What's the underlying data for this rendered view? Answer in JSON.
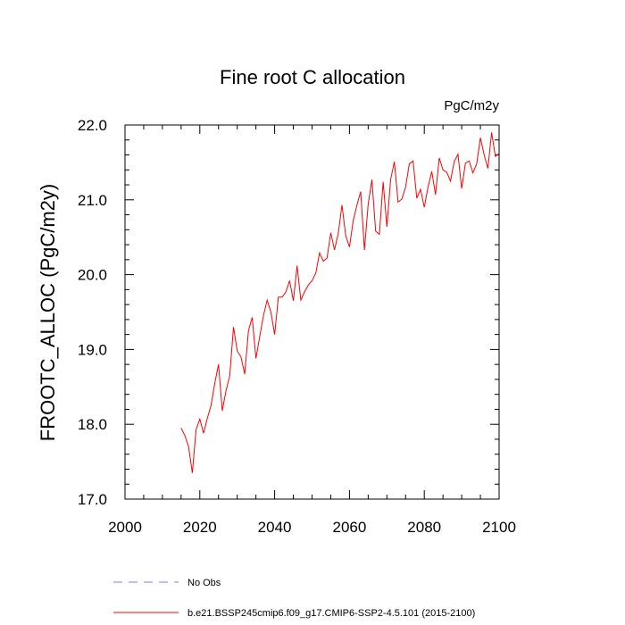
{
  "chart_data": {
    "type": "line",
    "title": "Fine root C allocation",
    "units_label": "PgC/m2y",
    "xlabel": "",
    "ylabel": "FROOTC_ALLOC  (PgC/m2y)",
    "xlim": [
      2000,
      2100
    ],
    "ylim": [
      17.0,
      22.0
    ],
    "x_ticks": [
      2000,
      2020,
      2040,
      2060,
      2080,
      2100
    ],
    "x_tick_labels": [
      "2000",
      "2020",
      "2040",
      "2060",
      "2080",
      "2100"
    ],
    "y_ticks": [
      17.0,
      18.0,
      19.0,
      20.0,
      21.0,
      22.0
    ],
    "y_tick_labels": [
      "17.0",
      "18.0",
      "19.0",
      "20.0",
      "21.0",
      "22.0"
    ],
    "grid": false,
    "legend_position": "bottom",
    "series": [
      {
        "name": "No Obs",
        "color": "#7a7aff",
        "dash": "dashed",
        "x": [],
        "y": []
      },
      {
        "name": "b.e21.BSSP245cmip6.f09_g17.CMIP6-SSP2-4.5.101 (2015-2100)",
        "color": "#ff0000",
        "dash": "solid",
        "x": [
          2015,
          2016,
          2017,
          2018,
          2019,
          2020,
          2021,
          2022,
          2023,
          2024,
          2025,
          2026,
          2027,
          2028,
          2029,
          2030,
          2031,
          2032,
          2033,
          2034,
          2035,
          2036,
          2037,
          2038,
          2039,
          2040,
          2041,
          2042,
          2043,
          2044,
          2045,
          2046,
          2047,
          2048,
          2049,
          2050,
          2051,
          2052,
          2053,
          2054,
          2055,
          2056,
          2057,
          2058,
          2059,
          2060,
          2061,
          2062,
          2063,
          2064,
          2065,
          2066,
          2067,
          2068,
          2069,
          2070,
          2071,
          2072,
          2073,
          2074,
          2075,
          2076,
          2077,
          2078,
          2079,
          2080,
          2081,
          2082,
          2083,
          2084,
          2085,
          2086,
          2087,
          2088,
          2089,
          2090,
          2091,
          2092,
          2093,
          2094,
          2095,
          2096,
          2097,
          2098,
          2099,
          2100
        ],
        "y": [
          17.95,
          17.85,
          17.7,
          17.35,
          17.93,
          18.07,
          17.88,
          18.08,
          18.25,
          18.55,
          18.8,
          18.18,
          18.45,
          18.65,
          19.3,
          18.98,
          18.9,
          18.67,
          19.25,
          19.43,
          18.88,
          19.17,
          19.45,
          19.66,
          19.5,
          19.2,
          19.7,
          19.7,
          19.77,
          19.92,
          19.65,
          20.12,
          19.66,
          19.77,
          19.86,
          19.92,
          20.02,
          20.29,
          20.18,
          20.22,
          20.56,
          20.33,
          20.55,
          20.93,
          20.52,
          20.37,
          20.72,
          20.93,
          21.11,
          20.33,
          20.94,
          21.27,
          20.58,
          20.54,
          21.24,
          20.64,
          21.27,
          21.51,
          20.97,
          21.01,
          21.17,
          21.48,
          21.52,
          21.02,
          21.14,
          20.9,
          21.17,
          21.38,
          21.07,
          21.56,
          21.4,
          21.37,
          21.25,
          21.51,
          21.61,
          21.15,
          21.49,
          21.52,
          21.36,
          21.48,
          21.83,
          21.6,
          21.42,
          21.9,
          21.58,
          21.62
        ]
      }
    ]
  }
}
